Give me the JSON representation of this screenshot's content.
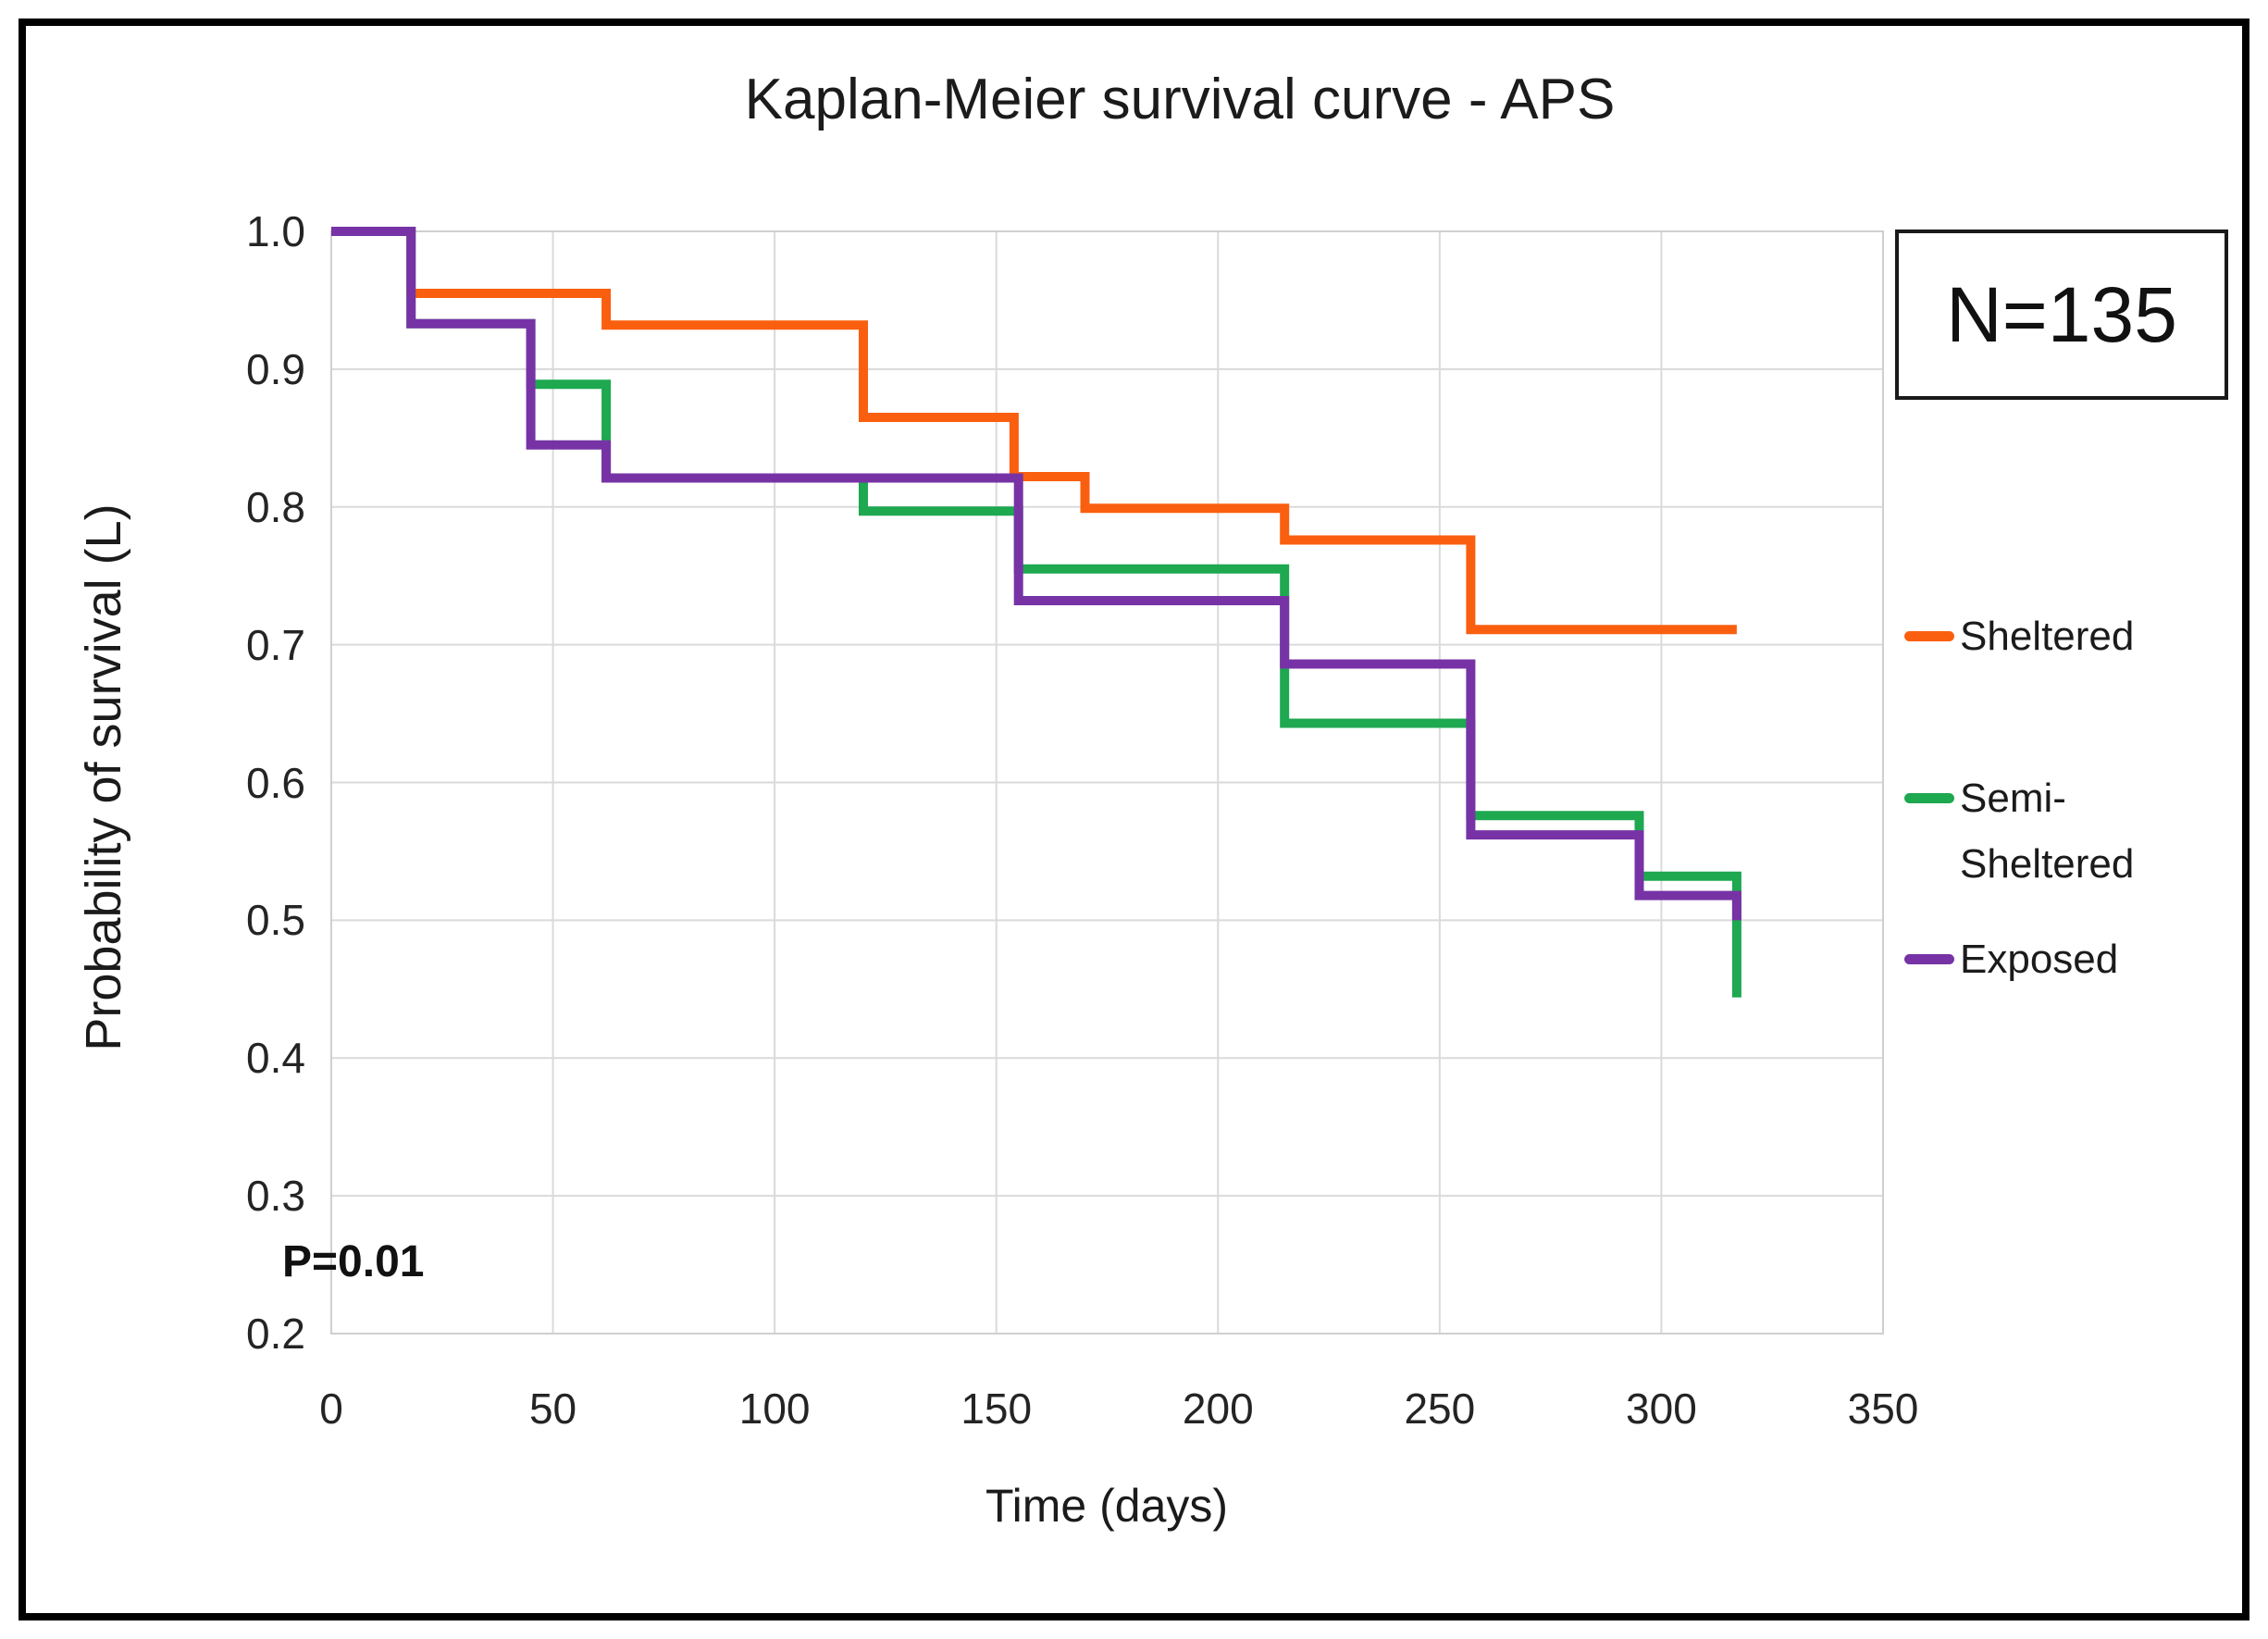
{
  "chart_data": {
    "type": "line",
    "subtype": "kaplan-meier-step",
    "title": "Kaplan-Meier survival curve - APS",
    "xlabel": "Time (days)",
    "ylabel": "Probability of survival (L)",
    "xlim": [
      0,
      350
    ],
    "ylim": [
      0.2,
      1.0
    ],
    "x_ticks": [
      "0",
      "50",
      "100",
      "150",
      "200",
      "250",
      "300",
      "350"
    ],
    "y_ticks": [
      "1.0",
      "0.9",
      "0.8",
      "0.7",
      "0.6",
      "0.5",
      "0.4",
      "0.3",
      "0.2"
    ],
    "grid": true,
    "grid_color": "#DADADA",
    "axis_border_color": "#CFCFCF",
    "legend_position": "right",
    "annotations": {
      "n_label": "N=135",
      "p_label": "P=0.01"
    },
    "series": [
      {
        "name": "Sheltered",
        "color": "#FA5F0F",
        "steps": [
          [
            0,
            1.0
          ],
          [
            18,
            0.955
          ],
          [
            62,
            0.932
          ],
          [
            120,
            0.865
          ],
          [
            154,
            0.822
          ],
          [
            170,
            0.799
          ],
          [
            215,
            0.776
          ],
          [
            257,
            0.711
          ]
        ],
        "end_day": 317
      },
      {
        "name": "Semi-Sheltered",
        "color": "#1EA850",
        "steps": [
          [
            0,
            1.0
          ],
          [
            18,
            0.933
          ],
          [
            45,
            0.889
          ],
          [
            62,
            0.821
          ],
          [
            120,
            0.797
          ],
          [
            155,
            0.755
          ],
          [
            215,
            0.643
          ],
          [
            257,
            0.576
          ],
          [
            295,
            0.532
          ],
          [
            317,
            0.444
          ]
        ],
        "end_day": 317
      },
      {
        "name": "Exposed",
        "color": "#7733A6",
        "steps": [
          [
            0,
            1.0
          ],
          [
            18,
            0.933
          ],
          [
            45,
            0.845
          ],
          [
            62,
            0.821
          ],
          [
            155,
            0.732
          ],
          [
            215,
            0.686
          ],
          [
            257,
            0.562
          ],
          [
            295,
            0.518
          ],
          [
            317,
            0.5
          ]
        ],
        "end_day": 317
      }
    ]
  },
  "legend": {
    "items": [
      {
        "label": "Sheltered",
        "lines": [
          "Sheltered"
        ],
        "color": "#FA5F0F"
      },
      {
        "label": "Semi-Sheltered",
        "lines": [
          "Semi-",
          "Sheltered"
        ],
        "color": "#1EA850"
      },
      {
        "label": "Exposed",
        "lines": [
          "Exposed"
        ],
        "color": "#7733A6"
      }
    ]
  }
}
